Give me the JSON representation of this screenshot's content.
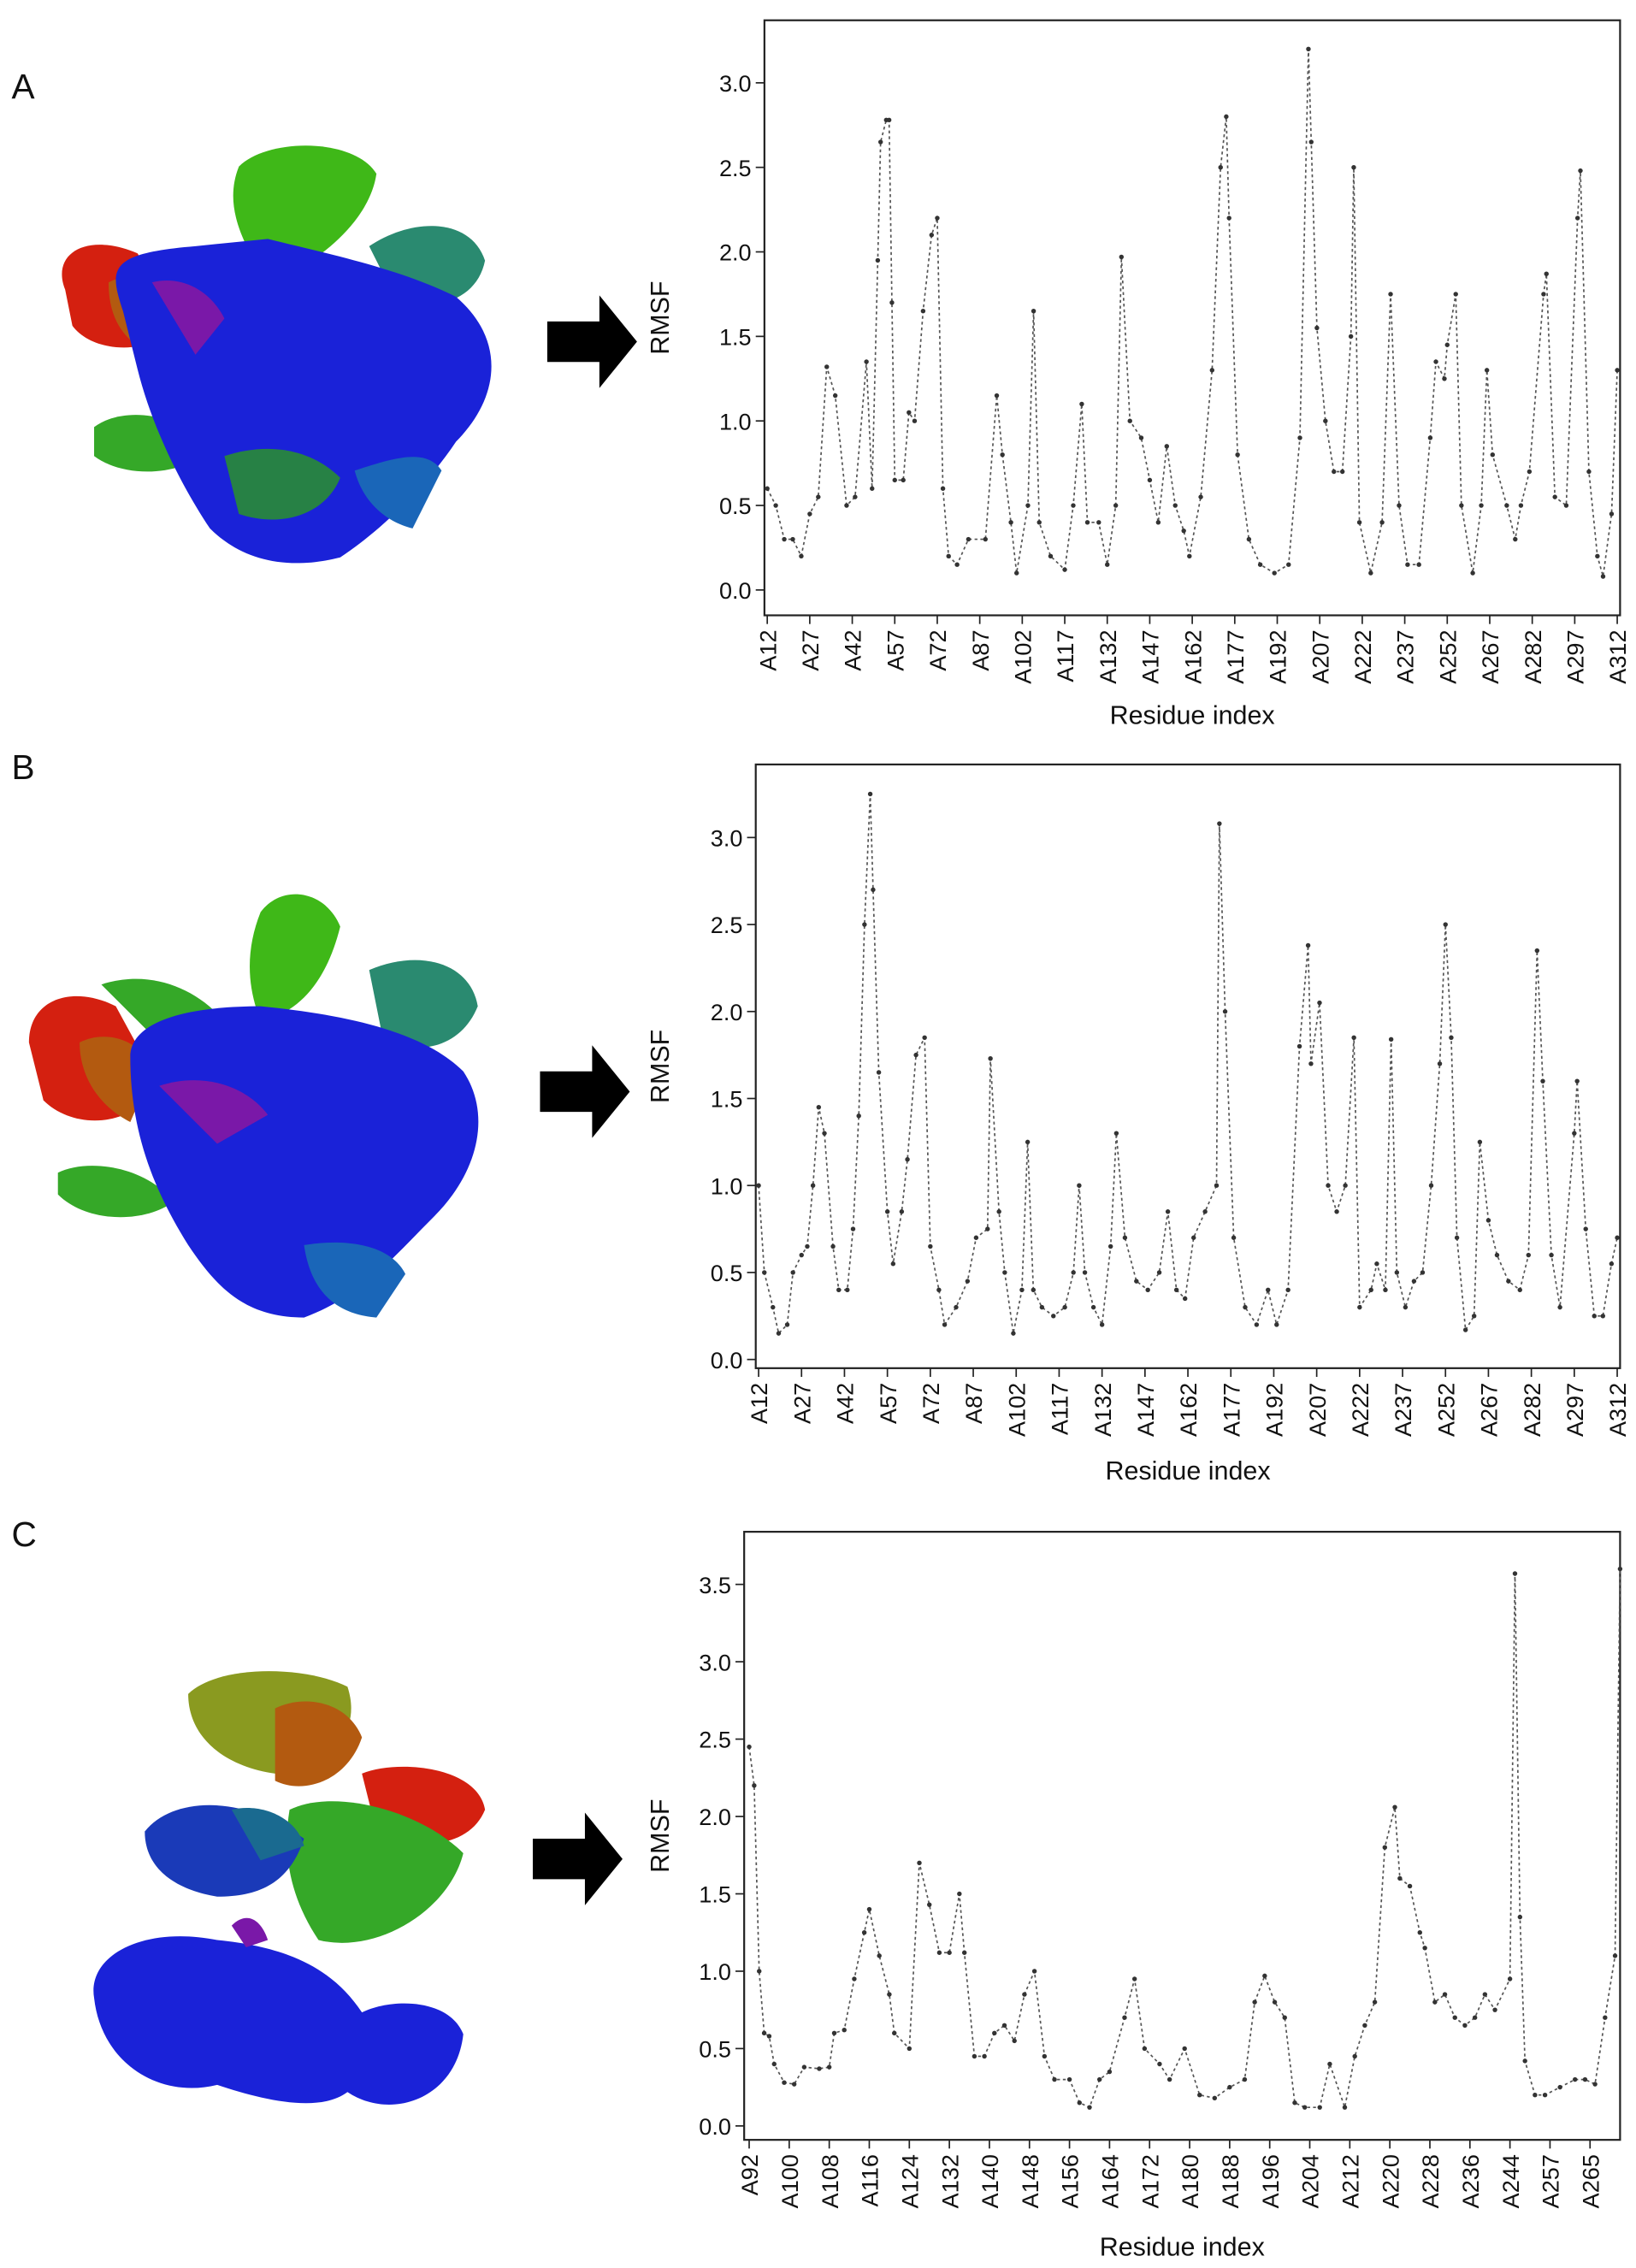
{
  "chart_data": [
    {
      "type": "line",
      "label": "A",
      "xlabel": "Residue index",
      "ylabel": "RMSF",
      "color": "#555555",
      "xlim": [
        11,
        313
      ],
      "ylim": [
        -0.15,
        3.37
      ],
      "xticks": [
        {
          "value": 12,
          "label": "A12"
        },
        {
          "value": 27,
          "label": "A27"
        },
        {
          "value": 42,
          "label": "A42"
        },
        {
          "value": 57,
          "label": "A57"
        },
        {
          "value": 72,
          "label": "A72"
        },
        {
          "value": 87,
          "label": "A87"
        },
        {
          "value": 102,
          "label": "A102"
        },
        {
          "value": 117,
          "label": "A117"
        },
        {
          "value": 132,
          "label": "A132"
        },
        {
          "value": 147,
          "label": "A147"
        },
        {
          "value": 162,
          "label": "A162"
        },
        {
          "value": 177,
          "label": "A177"
        },
        {
          "value": 192,
          "label": "A192"
        },
        {
          "value": 207,
          "label": "A207"
        },
        {
          "value": 222,
          "label": "A222"
        },
        {
          "value": 237,
          "label": "A237"
        },
        {
          "value": 252,
          "label": "A252"
        },
        {
          "value": 267,
          "label": "A267"
        },
        {
          "value": 282,
          "label": "A282"
        },
        {
          "value": 297,
          "label": "A297"
        },
        {
          "value": 312,
          "label": "A312"
        }
      ],
      "yticks": [
        {
          "value": 0,
          "label": "0.0"
        },
        0.5,
        {
          "value": 1,
          "label": "1.0"
        },
        1.5,
        {
          "value": 2,
          "label": "2.0"
        },
        2.5,
        {
          "value": 3,
          "label": "3.0"
        }
      ],
      "x": [
        12,
        15,
        18,
        21,
        24,
        27,
        30,
        33,
        36,
        40,
        43,
        47,
        49,
        51,
        52,
        54,
        55,
        56,
        57,
        60,
        62,
        64,
        67,
        70,
        72,
        74,
        76,
        79,
        83,
        89,
        93,
        95,
        98,
        100,
        104,
        106,
        108,
        112,
        117,
        120,
        123,
        125,
        129,
        132,
        135,
        137,
        140,
        144,
        147,
        150,
        153,
        156,
        159,
        161,
        165,
        169,
        172,
        174,
        175,
        178,
        182,
        186,
        191,
        196,
        200,
        203,
        204,
        206,
        209,
        212,
        215,
        218,
        219,
        221,
        225,
        229,
        232,
        235,
        238,
        242,
        246,
        248,
        251,
        252,
        255,
        257,
        261,
        264,
        266,
        268,
        273,
        276,
        278,
        281,
        286,
        287,
        290,
        294,
        298,
        299,
        302,
        305,
        307,
        310,
        312
      ],
      "values": [
        0.6,
        0.5,
        0.3,
        0.3,
        0.2,
        0.45,
        0.55,
        1.32,
        1.15,
        0.5,
        0.55,
        1.35,
        0.6,
        1.95,
        2.65,
        2.78,
        2.78,
        1.7,
        0.65,
        0.65,
        1.05,
        1.0,
        1.65,
        2.1,
        2.2,
        0.6,
        0.2,
        0.15,
        0.3,
        0.3,
        1.15,
        0.8,
        0.4,
        0.1,
        0.5,
        1.65,
        0.4,
        0.2,
        0.12,
        0.5,
        1.1,
        0.4,
        0.4,
        0.15,
        0.5,
        1.97,
        1.0,
        0.9,
        0.65,
        0.4,
        0.85,
        0.5,
        0.35,
        0.2,
        0.55,
        1.3,
        2.5,
        2.8,
        2.2,
        0.8,
        0.3,
        0.15,
        0.1,
        0.15,
        0.9,
        3.2,
        2.65,
        1.55,
        1.0,
        0.7,
        0.7,
        1.5,
        2.5,
        0.4,
        0.1,
        0.4,
        1.75,
        0.5,
        0.15,
        0.15,
        0.9,
        1.35,
        1.25,
        1.45,
        1.75,
        0.5,
        0.1,
        0.5,
        1.3,
        0.8,
        0.5,
        0.3,
        0.5,
        0.7,
        1.75,
        1.87,
        0.55,
        0.5,
        2.2,
        2.48,
        0.7,
        0.2,
        0.08,
        0.45,
        1.3
      ]
    },
    {
      "type": "line",
      "label": "B",
      "xlabel": "Residue index",
      "ylabel": "RMSF",
      "color": "#555555",
      "xlim": [
        11,
        313
      ],
      "ylim": [
        -0.05,
        3.42
      ],
      "xticks": [
        {
          "value": 12,
          "label": "A12"
        },
        {
          "value": 27,
          "label": "A27"
        },
        {
          "value": 42,
          "label": "A42"
        },
        {
          "value": 57,
          "label": "A57"
        },
        {
          "value": 72,
          "label": "A72"
        },
        {
          "value": 87,
          "label": "A87"
        },
        {
          "value": 102,
          "label": "A102"
        },
        {
          "value": 117,
          "label": "A117"
        },
        {
          "value": 132,
          "label": "A132"
        },
        {
          "value": 147,
          "label": "A147"
        },
        {
          "value": 162,
          "label": "A162"
        },
        {
          "value": 177,
          "label": "A177"
        },
        {
          "value": 192,
          "label": "A192"
        },
        {
          "value": 207,
          "label": "A207"
        },
        {
          "value": 222,
          "label": "A222"
        },
        {
          "value": 237,
          "label": "A237"
        },
        {
          "value": 252,
          "label": "A252"
        },
        {
          "value": 267,
          "label": "A267"
        },
        {
          "value": 282,
          "label": "A282"
        },
        {
          "value": 297,
          "label": "A297"
        },
        {
          "value": 312,
          "label": "A312"
        }
      ],
      "yticks": [
        {
          "value": 0,
          "label": "0.0"
        },
        0.5,
        {
          "value": 1,
          "label": "1.0"
        },
        1.5,
        {
          "value": 2,
          "label": "2.0"
        },
        2.5,
        {
          "value": 3,
          "label": "3.0"
        }
      ],
      "x": [
        12,
        14,
        17,
        19,
        22,
        24,
        27,
        29,
        31,
        33,
        35,
        38,
        40,
        43,
        45,
        47,
        49,
        51,
        52,
        54,
        57,
        59,
        62,
        64,
        67,
        70,
        72,
        75,
        77,
        81,
        85,
        88,
        92,
        93,
        96,
        98,
        101,
        104,
        106,
        108,
        111,
        115,
        119,
        122,
        124,
        126,
        129,
        132,
        135,
        137,
        140,
        144,
        148,
        152,
        155,
        158,
        161,
        164,
        168,
        172,
        173,
        175,
        178,
        182,
        186,
        190,
        193,
        197,
        201,
        204,
        205,
        208,
        211,
        214,
        217,
        220,
        222,
        226,
        228,
        231,
        233,
        235,
        238,
        241,
        244,
        247,
        250,
        252,
        254,
        256,
        259,
        262,
        264,
        267,
        270,
        274,
        278,
        281,
        284,
        286,
        289,
        292,
        297,
        298,
        301,
        304,
        307,
        310,
        312
      ],
      "values": [
        1.0,
        0.5,
        0.3,
        0.15,
        0.2,
        0.5,
        0.6,
        0.65,
        1.0,
        1.45,
        1.3,
        0.65,
        0.4,
        0.4,
        0.75,
        1.4,
        2.5,
        3.25,
        2.7,
        1.65,
        0.85,
        0.55,
        0.85,
        1.15,
        1.75,
        1.85,
        0.65,
        0.4,
        0.2,
        0.3,
        0.45,
        0.7,
        0.75,
        1.73,
        0.85,
        0.5,
        0.15,
        0.4,
        1.25,
        0.4,
        0.3,
        0.25,
        0.3,
        0.5,
        1.0,
        0.5,
        0.3,
        0.2,
        0.65,
        1.3,
        0.7,
        0.45,
        0.4,
        0.5,
        0.85,
        0.4,
        0.35,
        0.7,
        0.85,
        1.0,
        3.08,
        2.0,
        0.7,
        0.3,
        0.2,
        0.4,
        0.2,
        0.4,
        1.8,
        2.38,
        1.7,
        2.05,
        1.0,
        0.85,
        1.0,
        1.85,
        0.3,
        0.4,
        0.55,
        0.4,
        1.84,
        0.5,
        0.3,
        0.45,
        0.5,
        1.0,
        1.7,
        2.5,
        1.85,
        0.7,
        0.17,
        0.25,
        1.25,
        0.8,
        0.6,
        0.45,
        0.4,
        0.6,
        2.35,
        1.6,
        0.6,
        0.3,
        1.3,
        1.6,
        0.75,
        0.25,
        0.25,
        0.55,
        0.7
      ]
    },
    {
      "type": "line",
      "label": "C",
      "xlabel": "Residue index",
      "ylabel": "RMSF",
      "color": "#555555",
      "xlim": [
        -1,
        174
      ],
      "ylim": [
        -0.09,
        3.84
      ],
      "xticks": [
        {
          "value": 0,
          "label": "A92"
        },
        {
          "value": 8,
          "label": "A100"
        },
        {
          "value": 16,
          "label": "A108"
        },
        {
          "value": 24,
          "label": "A116"
        },
        {
          "value": 32,
          "label": "A124"
        },
        {
          "value": 40,
          "label": "A132"
        },
        {
          "value": 48,
          "label": "A140"
        },
        {
          "value": 56,
          "label": "A148"
        },
        {
          "value": 64,
          "label": "A156"
        },
        {
          "value": 72,
          "label": "A164"
        },
        {
          "value": 80,
          "label": "A172"
        },
        {
          "value": 88,
          "label": "A180"
        },
        {
          "value": 96,
          "label": "A188"
        },
        {
          "value": 104,
          "label": "A196"
        },
        {
          "value": 112,
          "label": "A204"
        },
        {
          "value": 120,
          "label": "A212"
        },
        {
          "value": 128,
          "label": "A220"
        },
        {
          "value": 136,
          "label": "A228"
        },
        {
          "value": 144,
          "label": "A236"
        },
        {
          "value": 152,
          "label": "A244"
        },
        {
          "value": 160,
          "label": "A257"
        },
        {
          "value": 168,
          "label": "A265"
        }
      ],
      "yticks": [
        {
          "value": 0,
          "label": "0.0"
        },
        0.5,
        {
          "value": 1,
          "label": "1.0"
        },
        1.5,
        {
          "value": 2,
          "label": "2.0"
        },
        2.5,
        {
          "value": 3,
          "label": "3.0"
        },
        3.5
      ],
      "x": [
        0,
        1,
        2,
        3,
        4,
        5,
        7,
        9,
        11,
        14,
        16,
        17,
        19,
        21,
        23,
        24,
        26,
        28,
        29,
        32,
        34,
        36,
        38,
        40,
        42,
        43,
        45,
        47,
        49,
        51,
        53,
        55,
        57,
        59,
        61,
        64,
        66,
        68,
        70,
        72,
        75,
        77,
        79,
        82,
        84,
        87,
        90,
        93,
        96,
        99,
        101,
        103,
        105,
        107,
        109,
        111,
        114,
        116,
        119,
        121,
        123,
        125,
        127,
        129,
        130,
        132,
        134,
        135,
        137,
        139,
        141,
        143,
        145,
        147,
        149,
        152,
        153,
        154,
        155,
        157,
        159,
        162,
        165,
        167,
        169,
        171,
        173,
        174
      ],
      "values": [
        2.45,
        2.2,
        1.0,
        0.6,
        0.58,
        0.4,
        0.28,
        0.27,
        0.38,
        0.37,
        0.38,
        0.6,
        0.62,
        0.95,
        1.25,
        1.4,
        1.1,
        0.85,
        0.6,
        0.5,
        1.7,
        1.43,
        1.12,
        1.12,
        1.5,
        1.12,
        0.45,
        0.45,
        0.6,
        0.65,
        0.55,
        0.85,
        1.0,
        0.45,
        0.3,
        0.3,
        0.15,
        0.12,
        0.3,
        0.35,
        0.7,
        0.95,
        0.5,
        0.4,
        0.3,
        0.5,
        0.2,
        0.18,
        0.25,
        0.3,
        0.8,
        0.97,
        0.8,
        0.7,
        0.15,
        0.12,
        0.12,
        0.4,
        0.12,
        0.45,
        0.65,
        0.8,
        1.8,
        2.06,
        1.6,
        1.55,
        1.25,
        1.15,
        0.8,
        0.85,
        0.7,
        0.65,
        0.7,
        0.85,
        0.75,
        0.95,
        3.57,
        1.35,
        0.42,
        0.2,
        0.2,
        0.25,
        0.3,
        0.3,
        0.27,
        0.7,
        1.1,
        3.6
      ]
    }
  ]
}
